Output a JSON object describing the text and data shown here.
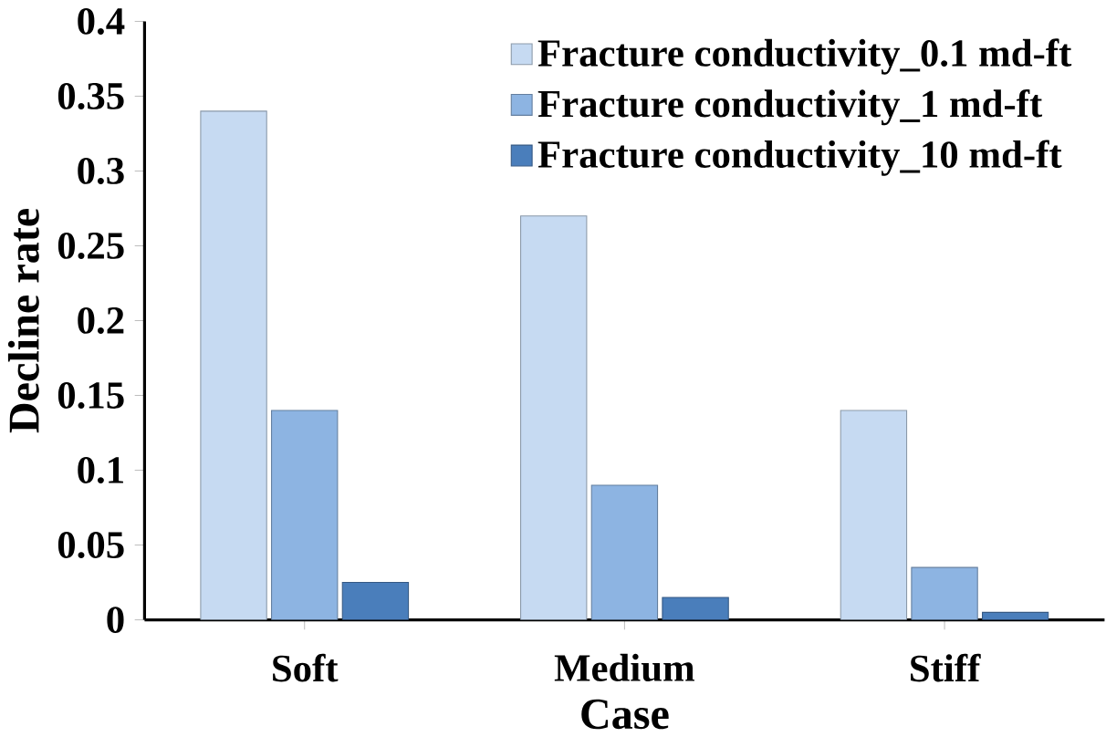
{
  "chart_data": {
    "type": "bar",
    "xlabel": "Case",
    "ylabel": "Decline rate",
    "categories": [
      "Soft",
      "Medium",
      "Stiff"
    ],
    "series": [
      {
        "name": "Fracture conductivity_0.1 md-ft",
        "color": "#c6daf2",
        "values": [
          0.34,
          0.27,
          0.14
        ]
      },
      {
        "name": "Fracture conductivity_1 md-ft",
        "color": "#8db4e2",
        "values": [
          0.14,
          0.09,
          0.035
        ]
      },
      {
        "name": "Fracture conductivity_10 md-ft",
        "color": "#4a7ebb",
        "values": [
          0.025,
          0.015,
          0.005
        ]
      }
    ],
    "ylim": [
      0,
      0.4
    ],
    "yticks": [
      0,
      0.05,
      0.1,
      0.15,
      0.2,
      0.25,
      0.3,
      0.35,
      0.4
    ],
    "legend": "top right"
  }
}
